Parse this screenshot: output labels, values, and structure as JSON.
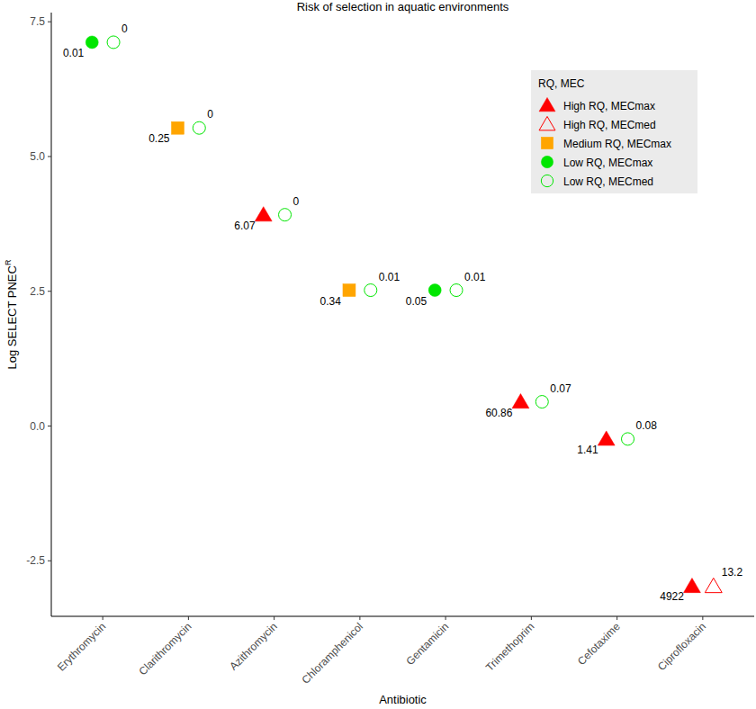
{
  "chart_data": {
    "type": "scatter",
    "title": "Risk of selection in aquatic environments",
    "x_label": "Antibiotic",
    "y_label": {
      "text": "Log SELECT PNEC",
      "superscript": "R"
    },
    "legend_title": "RQ, MEC",
    "legend": "top-right",
    "categories": [
      "Erythromycin",
      "Clarithromycin",
      "Azithromycin",
      "Chloramphenicol",
      "Gentamicin",
      "Trimethoprim",
      "Cefotaxime",
      "Ciprofloxacin"
    ],
    "ylim": [
      -3.53,
      7.67
    ],
    "yticks": [
      -2.5,
      {
        "value": 0,
        "label": "0.0"
      },
      2.5,
      {
        "value": 5,
        "label": "5.0"
      },
      7.5
    ],
    "grid": false,
    "series": [
      {
        "name": "High RQ, MECmax",
        "color": "#ff0000",
        "marker": "triangle",
        "values": [
          null,
          null,
          3.92,
          null,
          null,
          0.45,
          -0.24,
          -2.97
        ],
        "rq": [
          null,
          null,
          6.07,
          null,
          null,
          60.86,
          1.41,
          4922
        ]
      },
      {
        "name": "High RQ, MECmed",
        "color": "#ff0000",
        "marker": "triangle-open",
        "values": [
          null,
          null,
          null,
          null,
          null,
          null,
          null,
          -2.97
        ],
        "rq": [
          null,
          null,
          null,
          null,
          null,
          null,
          null,
          13.2
        ]
      },
      {
        "name": "Medium RQ, MECmax",
        "color": "#ffa500",
        "marker": "square",
        "values": [
          null,
          5.53,
          null,
          2.52,
          null,
          null,
          null,
          null
        ],
        "rq": [
          null,
          0.25,
          null,
          0.34,
          null,
          null,
          null,
          null
        ]
      },
      {
        "name": "Low RQ, MECmax",
        "color": "#00e600",
        "marker": "circle",
        "values": [
          7.12,
          null,
          null,
          null,
          2.52,
          null,
          null,
          null
        ],
        "rq": [
          0.01,
          null,
          null,
          null,
          0.05,
          null,
          null,
          null
        ]
      },
      {
        "name": "Low RQ, MECmed",
        "color": "#00e600",
        "marker": "circle-open",
        "values": [
          7.12,
          5.53,
          3.92,
          2.52,
          2.52,
          0.45,
          -0.24,
          null
        ],
        "rq": [
          0,
          0,
          0,
          0.01,
          0.01,
          0.07,
          0.08,
          null
        ]
      }
    ]
  }
}
